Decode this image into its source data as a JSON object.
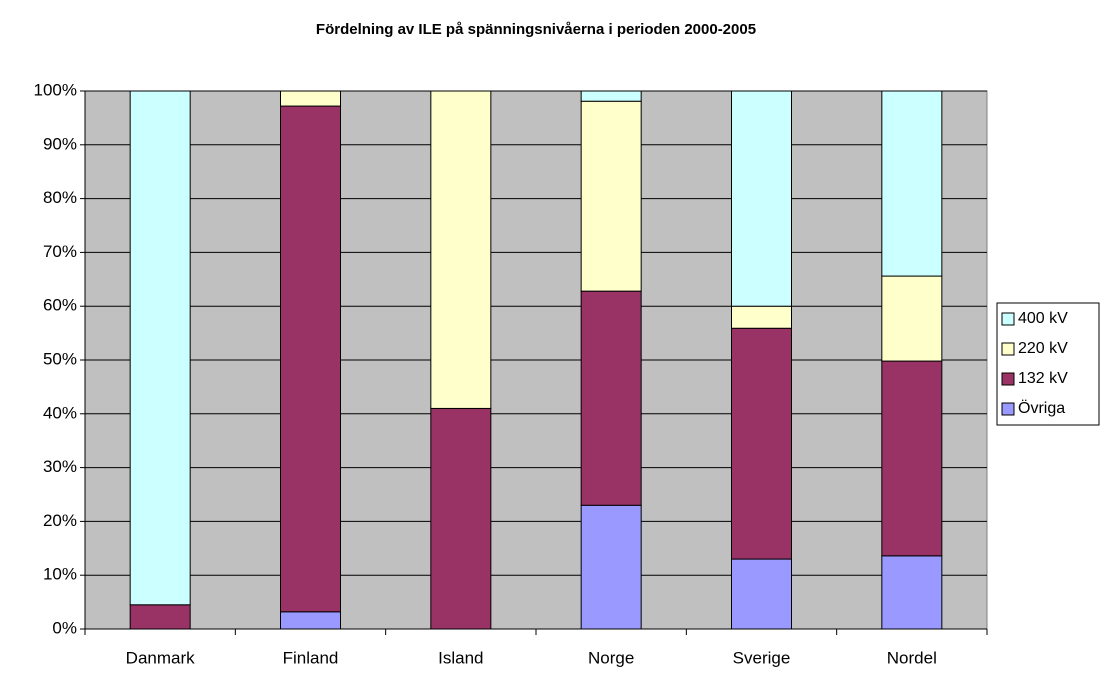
{
  "chart_data": {
    "type": "stacked_bar",
    "title": "Fördelning av ILE på spänningsnivåerna i perioden 2000-2005",
    "categories": [
      "Danmark",
      "Finland",
      "Island",
      "Norge",
      "Sverige",
      "Nordel"
    ],
    "series": [
      {
        "name": "Övriga",
        "color": "#9999ff",
        "values": [
          0,
          3.2,
          0,
          23,
          13,
          13.6
        ]
      },
      {
        "name": "132 kV",
        "color": "#993366",
        "values": [
          4.5,
          94,
          41,
          39.8,
          42.9,
          36.2
        ]
      },
      {
        "name": "220 kV",
        "color": "#ffffcc",
        "values": [
          0,
          2.8,
          59,
          35.3,
          4.1,
          15.8
        ]
      },
      {
        "name": "400 kV",
        "color": "#ccffff",
        "values": [
          95.5,
          0,
          0,
          1.9,
          40,
          34.4
        ]
      }
    ],
    "ylim": [
      0,
      100
    ],
    "yticks": [
      {
        "value": 0,
        "label": "0%"
      },
      {
        "value": 10,
        "label": "10%"
      },
      {
        "value": 20,
        "label": "20%"
      },
      {
        "value": 30,
        "label": "30%"
      },
      {
        "value": 40,
        "label": "40%"
      },
      {
        "value": 50,
        "label": "50%"
      },
      {
        "value": 60,
        "label": "60%"
      },
      {
        "value": 70,
        "label": "70%"
      },
      {
        "value": 80,
        "label": "80%"
      },
      {
        "value": 90,
        "label": "90%"
      },
      {
        "value": 100,
        "label": "100%"
      }
    ],
    "grid": true,
    "legend": "right",
    "plot_background": "#c0c0c0"
  }
}
